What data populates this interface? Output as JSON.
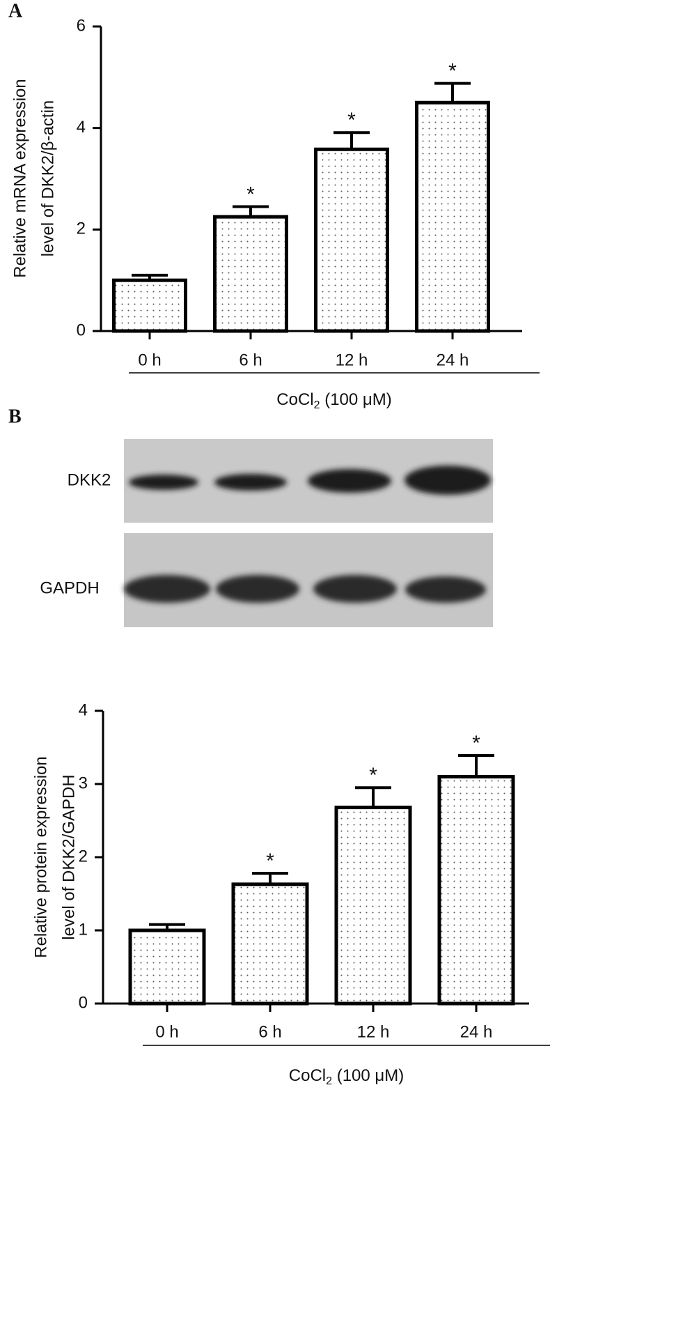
{
  "chart_data": [
    {
      "type": "bar",
      "panel": "A",
      "categories": [
        "0 h",
        "6 h",
        "12 h",
        "24 h"
      ],
      "values": [
        1.0,
        2.25,
        3.58,
        4.5
      ],
      "errors": [
        0.1,
        0.2,
        0.33,
        0.38
      ],
      "annotations": [
        null,
        "*",
        "*",
        "*"
      ],
      "ylim": [
        0,
        6
      ],
      "yticks": [
        0,
        2,
        4,
        6
      ],
      "ylabel": [
        "Relative mRNA expression",
        "level of DKK2/β-actin"
      ],
      "xlabel": {
        "text": "CoCl",
        "sub": "2",
        "rest": " (100 μM)"
      },
      "color": "#000000"
    },
    {
      "type": "bar",
      "panel": "B",
      "categories": [
        "0 h",
        "6 h",
        "12 h",
        "24 h"
      ],
      "values": [
        1.0,
        1.63,
        2.68,
        3.1
      ],
      "errors": [
        0.08,
        0.15,
        0.27,
        0.29
      ],
      "annotations": [
        null,
        "*",
        "*",
        "*"
      ],
      "ylim": [
        0,
        4
      ],
      "yticks": [
        0,
        1,
        2,
        3,
        4
      ],
      "ylabel": [
        "Relative protein expression",
        "level of DKK2/GAPDH"
      ],
      "xlabel": {
        "text": "CoCl",
        "sub": "2",
        "rest": " (100 μM)"
      },
      "color": "#000000"
    }
  ],
  "blot": {
    "labels": [
      "DKK2",
      "GAPDH"
    ]
  }
}
